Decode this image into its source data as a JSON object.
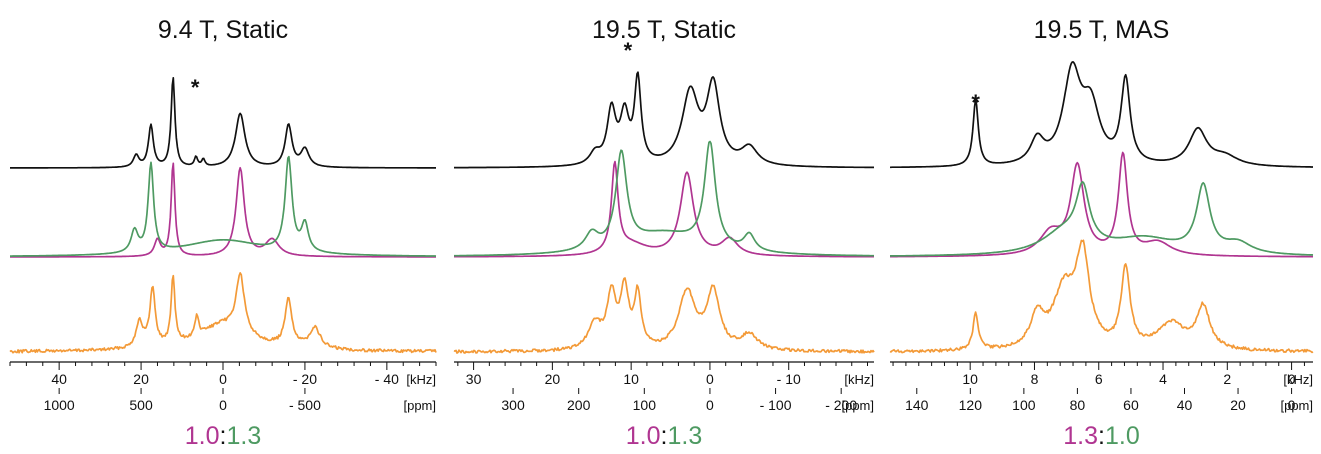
{
  "chart_data": [
    {
      "type": "line",
      "title": "9.4 T, Static",
      "x_range_ppm": [
        1300,
        -1300
      ],
      "ppm_ticks": [
        {
          "v": 1000,
          "label": "1000"
        },
        {
          "v": 500,
          "label": "500"
        },
        {
          "v": 0,
          "label": "0"
        },
        {
          "v": -500,
          "label": "- 500"
        }
      ],
      "khz_ticks": [
        {
          "v": 40,
          "label": "40"
        },
        {
          "v": 20,
          "label": "20"
        },
        {
          "v": 0,
          "label": "0"
        },
        {
          "v": -20,
          "label": "- 20"
        },
        {
          "v": -40,
          "label": "- 40"
        }
      ],
      "khz_per_ppm": 0.04,
      "khz_unit": "[kHz]",
      "ppm_unit": "[ppm]",
      "ratio": {
        "a": "1.0",
        "sep": ":",
        "b": "1.3",
        "a_color": "#b03591",
        "b_color": "#4e9a62"
      },
      "impurity_marker": {
        "label": "*",
        "x_ppm": 170
      },
      "series": [
        {
          "color": "#111111",
          "peaks": [
            {
              "x": 530,
              "w": 20,
              "h": 0.1
            },
            {
              "x": 440,
              "w": 18,
              "h": 0.35
            },
            {
              "x": 305,
              "w": 14,
              "h": 0.75
            },
            {
              "x": 165,
              "w": 12,
              "h": 0.08
            },
            {
              "x": 120,
              "w": 12,
              "h": 0.06
            },
            {
              "x": -105,
              "w": 35,
              "h": 0.45
            },
            {
              "x": -400,
              "w": 25,
              "h": 0.35
            },
            {
              "x": -500,
              "w": 30,
              "h": 0.15
            }
          ]
        },
        {
          "color": "#b03591",
          "peaks": [
            {
              "x": 400,
              "w": 22,
              "h": 0.15
            },
            {
              "x": 305,
              "w": 14,
              "h": 0.85
            },
            {
              "x": -105,
              "w": 30,
              "h": 0.8
            },
            {
              "x": -300,
              "w": 50,
              "h": 0.15
            }
          ]
        },
        {
          "color": "#4e9a62",
          "peaks": [
            {
              "x": 540,
              "w": 25,
              "h": 0.2
            },
            {
              "x": 440,
              "w": 20,
              "h": 0.8
            },
            {
              "x": 0,
              "w": 300,
              "h": 0.15
            },
            {
              "x": -400,
              "w": 25,
              "h": 0.85
            },
            {
              "x": -500,
              "w": 25,
              "h": 0.25
            }
          ]
        },
        {
          "color": "#f39a38",
          "noise": true,
          "peaks": [
            {
              "x": 510,
              "w": 25,
              "h": 0.25
            },
            {
              "x": 430,
              "w": 20,
              "h": 0.55
            },
            {
              "x": 305,
              "w": 14,
              "h": 0.65
            },
            {
              "x": 160,
              "w": 12,
              "h": 0.2
            },
            {
              "x": 0,
              "w": 200,
              "h": 0.25
            },
            {
              "x": -105,
              "w": 30,
              "h": 0.55
            },
            {
              "x": -400,
              "w": 25,
              "h": 0.45
            },
            {
              "x": -560,
              "w": 40,
              "h": 0.2
            }
          ]
        }
      ]
    },
    {
      "type": "line",
      "title": "19.5 T, Static",
      "x_range_ppm": [
        390,
        -250
      ],
      "ppm_ticks": [
        {
          "v": 300,
          "label": "300"
        },
        {
          "v": 200,
          "label": "200"
        },
        {
          "v": 100,
          "label": "100"
        },
        {
          "v": 0,
          "label": "0"
        },
        {
          "v": -100,
          "label": "- 100"
        },
        {
          "v": -200,
          "label": "- 200"
        }
      ],
      "khz_ticks": [
        {
          "v": 30,
          "label": "30"
        },
        {
          "v": 20,
          "label": "20"
        },
        {
          "v": 10,
          "label": "10"
        },
        {
          "v": 0,
          "label": "0"
        },
        {
          "v": -10,
          "label": "- 10"
        }
      ],
      "khz_per_ppm": 0.0833,
      "khz_unit": "[kHz]",
      "ppm_unit": "[ppm]",
      "ratio": {
        "a": "1.0",
        "sep": ":",
        "b": "1.3",
        "a_color": "#b03591",
        "b_color": "#4e9a62"
      },
      "impurity_marker": {
        "label": "*",
        "x_ppm": 125
      },
      "series": [
        {
          "color": "#111111",
          "peaks": [
            {
              "x": 175,
              "w": 10,
              "h": 0.1
            },
            {
              "x": 150,
              "w": 8,
              "h": 0.45
            },
            {
              "x": 130,
              "w": 8,
              "h": 0.4
            },
            {
              "x": 110,
              "w": 6,
              "h": 0.7
            },
            {
              "x": 30,
              "w": 15,
              "h": 0.6
            },
            {
              "x": -5,
              "w": 12,
              "h": 0.65
            },
            {
              "x": -60,
              "w": 15,
              "h": 0.15
            }
          ]
        },
        {
          "color": "#b03591",
          "peaks": [
            {
              "x": 145,
              "w": 6,
              "h": 0.8
            },
            {
              "x": 120,
              "w": 30,
              "h": 0.1
            },
            {
              "x": 35,
              "w": 12,
              "h": 0.75
            },
            {
              "x": -30,
              "w": 15,
              "h": 0.15
            }
          ]
        },
        {
          "color": "#4e9a62",
          "peaks": [
            {
              "x": 180,
              "w": 12,
              "h": 0.15
            },
            {
              "x": 135,
              "w": 10,
              "h": 0.85
            },
            {
              "x": 70,
              "w": 70,
              "h": 0.2
            },
            {
              "x": 0,
              "w": 10,
              "h": 0.95
            },
            {
              "x": -60,
              "w": 10,
              "h": 0.15
            }
          ]
        },
        {
          "color": "#f39a38",
          "noise": true,
          "peaks": [
            {
              "x": 175,
              "w": 12,
              "h": 0.25
            },
            {
              "x": 150,
              "w": 8,
              "h": 0.5
            },
            {
              "x": 130,
              "w": 8,
              "h": 0.55
            },
            {
              "x": 110,
              "w": 6,
              "h": 0.5
            },
            {
              "x": 35,
              "w": 15,
              "h": 0.55
            },
            {
              "x": -5,
              "w": 12,
              "h": 0.55
            },
            {
              "x": -60,
              "w": 15,
              "h": 0.15
            }
          ]
        }
      ]
    },
    {
      "type": "line",
      "title": "19.5 T, MAS",
      "x_range_ppm": [
        150,
        -8
      ],
      "ppm_ticks": [
        {
          "v": 140,
          "label": "140"
        },
        {
          "v": 120,
          "label": "120"
        },
        {
          "v": 100,
          "label": "100"
        },
        {
          "v": 80,
          "label": "80"
        },
        {
          "v": 60,
          "label": "60"
        },
        {
          "v": 40,
          "label": "40"
        },
        {
          "v": 20,
          "label": "20"
        },
        {
          "v": 0,
          "label": "0"
        }
      ],
      "khz_ticks": [
        {
          "v": 10,
          "label": "10"
        },
        {
          "v": 8,
          "label": "8"
        },
        {
          "v": 6,
          "label": "6"
        },
        {
          "v": 4,
          "label": "4"
        },
        {
          "v": 2,
          "label": "2"
        },
        {
          "v": 0,
          "label": "0"
        }
      ],
      "khz_per_ppm": 0.0833,
      "khz_unit": "[kHz]",
      "ppm_unit": "[ppm]",
      "ratio": {
        "a": "1.3",
        "sep": ":",
        "b": "1.0",
        "a_color": "#b03591",
        "b_color": "#4e9a62"
      },
      "impurity_marker": {
        "label": "*",
        "x_ppm": 118
      },
      "series": [
        {
          "color": "#111111",
          "peaks": [
            {
              "x": 118,
              "w": 1.2,
              "h": 0.55
            },
            {
              "x": 95,
              "w": 3,
              "h": 0.2
            },
            {
              "x": 82,
              "w": 4,
              "h": 0.75
            },
            {
              "x": 75,
              "w": 4,
              "h": 0.45
            },
            {
              "x": 62,
              "w": 2,
              "h": 0.7
            },
            {
              "x": 35,
              "w": 4,
              "h": 0.3
            },
            {
              "x": 25,
              "w": 6,
              "h": 0.08
            }
          ]
        },
        {
          "color": "#b03591",
          "peaks": [
            {
              "x": 90,
              "w": 5,
              "h": 0.2
            },
            {
              "x": 80,
              "w": 3,
              "h": 0.8
            },
            {
              "x": 63,
              "w": 2,
              "h": 0.9
            },
            {
              "x": 50,
              "w": 6,
              "h": 0.12
            }
          ]
        },
        {
          "color": "#4e9a62",
          "peaks": [
            {
              "x": 85,
              "w": 10,
              "h": 0.2
            },
            {
              "x": 78,
              "w": 3,
              "h": 0.5
            },
            {
              "x": 55,
              "w": 15,
              "h": 0.15
            },
            {
              "x": 33,
              "w": 3,
              "h": 0.6
            },
            {
              "x": 20,
              "w": 6,
              "h": 0.1
            }
          ]
        },
        {
          "color": "#f39a38",
          "noise": true,
          "peaks": [
            {
              "x": 118,
              "w": 1.2,
              "h": 0.35
            },
            {
              "x": 95,
              "w": 3,
              "h": 0.3
            },
            {
              "x": 85,
              "w": 5,
              "h": 0.55
            },
            {
              "x": 78,
              "w": 3,
              "h": 0.85
            },
            {
              "x": 62,
              "w": 2,
              "h": 0.75
            },
            {
              "x": 45,
              "w": 6,
              "h": 0.25
            },
            {
              "x": 33,
              "w": 3,
              "h": 0.4
            }
          ]
        }
      ]
    }
  ]
}
